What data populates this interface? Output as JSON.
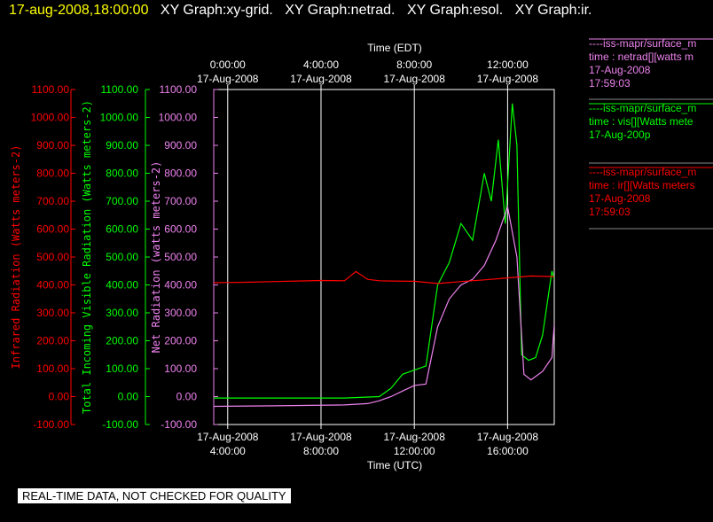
{
  "header": {
    "timestamp": "17-aug-2008,18:00:00",
    "graphs": [
      "XY Graph:xy-grid.",
      "XY Graph:netrad.",
      "XY Graph:esol.",
      "XY Graph:ir."
    ]
  },
  "banner": "REAL-TIME DATA, NOT CHECKED FOR QUALITY",
  "legend": [
    {
      "source": "----iss-mapr/surface_m",
      "var": "time : netrad[][watts m",
      "date": "17-Aug-2008",
      "time": "17:59:03",
      "color": "#ee82ee"
    },
    {
      "source": "----iss-mapr/surface_m",
      "var": "time : vis[][Watts mete",
      "date": "17-Aug-200p",
      "time": "",
      "color": "#00ff00"
    },
    {
      "source": "----iss-mapr/surface_m",
      "var": "time : ir[][Watts meters",
      "date": "17-Aug-2008",
      "time": "17:59:03",
      "color": "#ff0000"
    }
  ],
  "colors": {
    "ir": "#ff0000",
    "vis": "#00ff00",
    "net": "#ee82ee",
    "grid": "#ffffff",
    "background": "#000000"
  },
  "chart_data": {
    "type": "line",
    "grid": true,
    "xlabel_bottom": "Time (UTC)",
    "xlabel_top": "Time (EDT)",
    "x_range_utc_hours": [
      3.4,
      18.0
    ],
    "x_ticks_bottom": [
      {
        "hour": 4,
        "date": "17-Aug-2008",
        "time": "4:00:00"
      },
      {
        "hour": 8,
        "date": "17-Aug-2008",
        "time": "8:00:00"
      },
      {
        "hour": 12,
        "date": "17-Aug-2008",
        "time": "12:00:00"
      },
      {
        "hour": 16,
        "date": "17-Aug-2008",
        "time": "16:00:00"
      }
    ],
    "x_ticks_top": [
      {
        "hour": 4,
        "time": "0:00:00",
        "date": "17-Aug-2008"
      },
      {
        "hour": 8,
        "time": "4:00:00",
        "date": "17-Aug-2008"
      },
      {
        "hour": 12,
        "time": "8:00:00",
        "date": "17-Aug-2008"
      },
      {
        "hour": 16,
        "time": "12:00:00",
        "date": "17-Aug-2008"
      }
    ],
    "ylim": [
      -100,
      1100
    ],
    "y_ticks": [
      "1100.00",
      "1000.00",
      "900.00",
      "800.00",
      "700.00",
      "600.00",
      "500.00",
      "400.00",
      "300.00",
      "200.00",
      "100.00",
      "0.00",
      "-100.00"
    ],
    "y_axes": [
      {
        "label": "Infrared Radiation (Watts meters-2)",
        "color": "#ff0000"
      },
      {
        "label": "Total Incoming Visible Radiation (Watts meters-2)",
        "color": "#00ff00"
      },
      {
        "label": "Net Radiation (watts meters-2)",
        "color": "#ee82ee"
      }
    ],
    "series": [
      {
        "key": "ir",
        "color": "#ff0000",
        "x": [
          3.4,
          5,
          6,
          7,
          8,
          9,
          9.5,
          10,
          10.5,
          11,
          12,
          13,
          14,
          15,
          16,
          17,
          18
        ],
        "y": [
          408,
          410,
          412,
          414,
          416,
          415,
          448,
          420,
          415,
          414,
          413,
          405,
          412,
          418,
          425,
          432,
          430
        ]
      },
      {
        "key": "vis",
        "color": "#00ff00",
        "x": [
          3.4,
          6,
          9,
          10.5,
          11,
          11.5,
          12,
          12.5,
          13,
          13.5,
          14,
          14.5,
          15,
          15.3,
          15.6,
          15.9,
          16.2,
          16.4,
          16.6,
          16.9,
          17.2,
          17.5,
          17.9,
          18
        ],
        "y": [
          -5,
          -5,
          -5,
          0,
          30,
          80,
          95,
          110,
          400,
          480,
          620,
          560,
          800,
          700,
          920,
          620,
          1050,
          900,
          150,
          130,
          140,
          220,
          450,
          420
        ]
      },
      {
        "key": "net",
        "color": "#ee82ee",
        "x": [
          3.4,
          6,
          9,
          10,
          10.5,
          11,
          11.5,
          12,
          12.5,
          13,
          13.5,
          14,
          14.5,
          15,
          15.5,
          16,
          16.4,
          16.7,
          17,
          17.5,
          17.9,
          18
        ],
        "y": [
          -35,
          -33,
          -30,
          -25,
          -15,
          0,
          20,
          40,
          45,
          250,
          350,
          400,
          420,
          470,
          560,
          680,
          500,
          80,
          60,
          90,
          140,
          260
        ]
      }
    ]
  }
}
